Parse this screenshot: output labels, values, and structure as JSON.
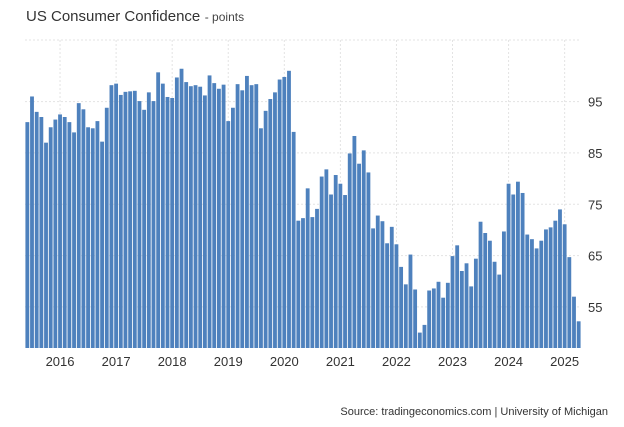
{
  "header": {
    "title": "US Consumer Confidence",
    "subtitle": "- points"
  },
  "source": "Source: tradingeconomics.com | University of Michigan",
  "chart_data": {
    "type": "bar",
    "title": "US Consumer Confidence",
    "ylabel": "points",
    "ylim": [
      47,
      107
    ],
    "yticks": [
      55,
      65,
      75,
      85,
      95
    ],
    "xticks": [
      "2016",
      "2017",
      "2018",
      "2019",
      "2020",
      "2021",
      "2022",
      "2023",
      "2024",
      "2025"
    ],
    "grid": true,
    "bar_color": "#4e81bd",
    "categories": [
      "2015-06",
      "2015-07",
      "2015-08",
      "2015-09",
      "2015-10",
      "2015-11",
      "2015-12",
      "2016-01",
      "2016-02",
      "2016-03",
      "2016-04",
      "2016-05",
      "2016-06",
      "2016-07",
      "2016-08",
      "2016-09",
      "2016-10",
      "2016-11",
      "2016-12",
      "2017-01",
      "2017-02",
      "2017-03",
      "2017-04",
      "2017-05",
      "2017-06",
      "2017-07",
      "2017-08",
      "2017-09",
      "2017-10",
      "2017-11",
      "2017-12",
      "2018-01",
      "2018-02",
      "2018-03",
      "2018-04",
      "2018-05",
      "2018-06",
      "2018-07",
      "2018-08",
      "2018-09",
      "2018-10",
      "2018-11",
      "2018-12",
      "2019-01",
      "2019-02",
      "2019-03",
      "2019-04",
      "2019-05",
      "2019-06",
      "2019-07",
      "2019-08",
      "2019-09",
      "2019-10",
      "2019-11",
      "2019-12",
      "2020-01",
      "2020-02",
      "2020-03",
      "2020-04",
      "2020-05",
      "2020-06",
      "2020-07",
      "2020-08",
      "2020-09",
      "2020-10",
      "2020-11",
      "2020-12",
      "2021-01",
      "2021-02",
      "2021-03",
      "2021-04",
      "2021-05",
      "2021-06",
      "2021-07",
      "2021-08",
      "2021-09",
      "2021-10",
      "2021-11",
      "2021-12",
      "2022-01",
      "2022-02",
      "2022-03",
      "2022-04",
      "2022-05",
      "2022-06",
      "2022-07",
      "2022-08",
      "2022-09",
      "2022-10",
      "2022-11",
      "2022-12",
      "2023-01",
      "2023-02",
      "2023-03",
      "2023-04",
      "2023-05",
      "2023-06",
      "2023-07",
      "2023-08",
      "2023-09",
      "2023-10",
      "2023-11",
      "2023-12",
      "2024-01",
      "2024-02",
      "2024-03",
      "2024-04",
      "2024-05",
      "2024-06",
      "2024-07",
      "2024-08",
      "2024-09",
      "2024-10",
      "2024-11",
      "2024-12",
      "2025-01",
      "2025-02",
      "2025-03",
      "2025-04"
    ],
    "values": [
      91.0,
      96.0,
      93.0,
      92.0,
      87.0,
      90.0,
      91.5,
      92.5,
      92.0,
      91.0,
      89.0,
      94.7,
      93.5,
      90.0,
      89.8,
      91.2,
      87.2,
      93.8,
      98.2,
      98.5,
      96.3,
      96.9,
      97.0,
      97.1,
      95.1,
      93.4,
      96.8,
      95.1,
      100.7,
      98.5,
      95.9,
      95.7,
      99.7,
      101.4,
      98.8,
      98.0,
      98.2,
      97.9,
      96.2,
      100.1,
      98.6,
      97.5,
      98.3,
      91.2,
      93.8,
      98.4,
      97.2,
      100.0,
      98.2,
      98.4,
      89.8,
      93.2,
      95.5,
      96.8,
      99.3,
      99.8,
      101.0,
      89.1,
      71.8,
      72.3,
      78.1,
      72.5,
      74.1,
      80.4,
      81.8,
      76.9,
      80.7,
      79.0,
      76.8,
      84.9,
      88.3,
      82.9,
      85.5,
      81.2,
      70.3,
      72.8,
      71.7,
      67.4,
      70.6,
      67.2,
      62.8,
      59.4,
      65.2,
      58.4,
      50.0,
      51.5,
      58.2,
      58.6,
      59.9,
      56.8,
      59.7,
      64.9,
      67.0,
      62.0,
      63.5,
      59.0,
      64.4,
      71.6,
      69.4,
      67.9,
      63.8,
      61.3,
      69.7,
      79.0,
      76.9,
      79.4,
      77.2,
      69.1,
      68.2,
      66.4,
      67.9,
      70.1,
      70.5,
      71.8,
      74.0,
      71.1,
      64.7,
      57.0,
      52.2
    ]
  }
}
